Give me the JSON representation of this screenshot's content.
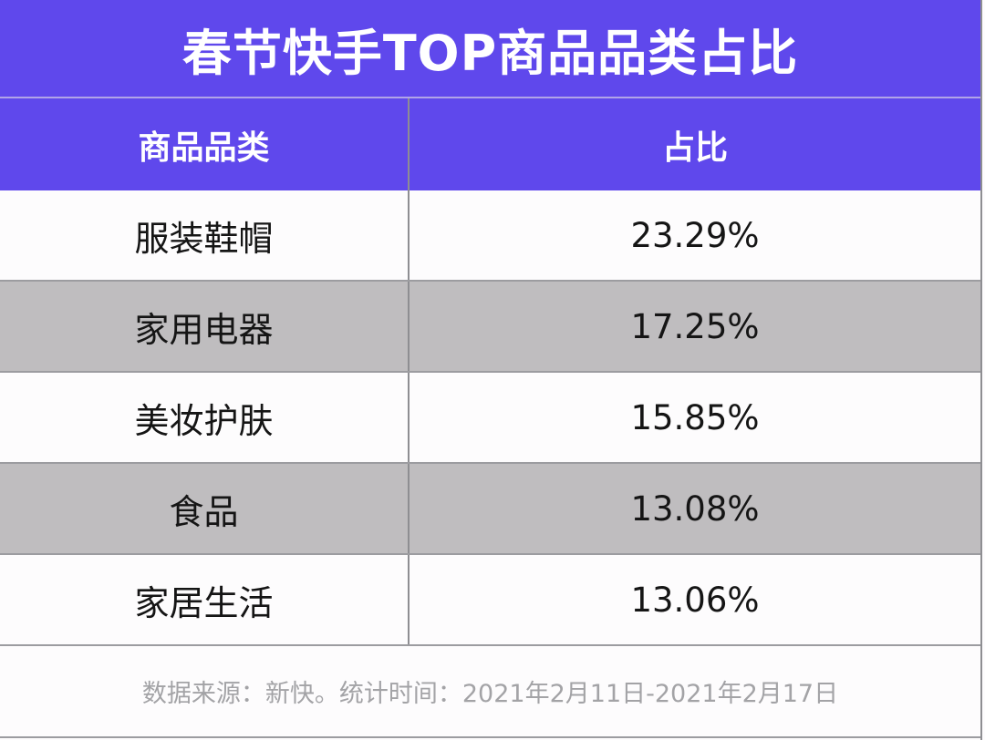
{
  "title": "春节快手TOP商品品类占比",
  "table": {
    "headers": [
      "商品品类",
      "占比"
    ],
    "rows": [
      {
        "category": "服装鞋帽",
        "share": "23.29%"
      },
      {
        "category": "家用电器",
        "share": "17.25%"
      },
      {
        "category": "美妆护肤",
        "share": "15.85%"
      },
      {
        "category": "食品",
        "share": "13.08%"
      },
      {
        "category": "家居生活",
        "share": "13.06%"
      }
    ]
  },
  "footer": {
    "source": "数据来源：新快。统计时间：2021年2月11日-2021年2月17日"
  },
  "colors": {
    "header_bg": "#5f48ec",
    "header_text": "#ffffff",
    "alt_row_bg": "#bfbdbf",
    "row_bg": "#fdfcfd",
    "footer_text": "#a3a3a6"
  },
  "chart_data": {
    "type": "table",
    "title": "春节快手TOP商品品类占比",
    "columns": [
      "商品品类",
      "占比"
    ],
    "categories": [
      "服装鞋帽",
      "家用电器",
      "美妆护肤",
      "食品",
      "家居生活"
    ],
    "values": [
      23.29,
      17.25,
      15.85,
      13.08,
      13.06
    ],
    "unit": "%",
    "annotation": "数据来源：新快。统计时间：2021年2月11日-2021年2月17日"
  }
}
